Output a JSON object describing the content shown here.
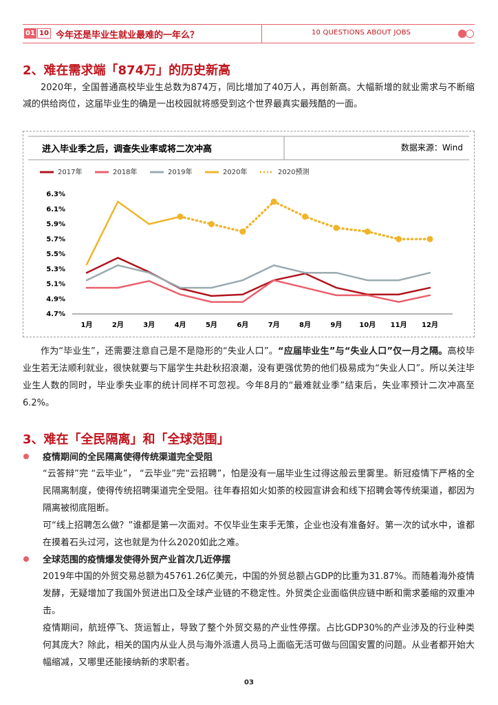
{
  "header": {
    "num": "01",
    "total": "10",
    "title": "今年还是毕业生就业最难的一年么？",
    "subtitle": "10 QUESTIONS ABOUT JOBS"
  },
  "section2": {
    "heading": "2、难在需求端「874万」的历史新高",
    "p1": "2020年，全国普通高校毕业生总数为874万，同比增加了40万人，再创新高。大幅新增的就业需求与不断缩减的供给岗位，这届毕业生的确是一出校园就将感受到这个世界最真实最残酷的一面。",
    "p2": {
      "before": "作为“毕业生”，还需要注意自己是不是隐形的“失业人口”。",
      "bold": "“应届毕业生”与“失业人口”仅一月之隔。",
      "after": "高校毕业生若无法顺利就业，很快就要与下届学生共赴秋招浪潮，没有更强优势的他们极易成为“失业人口”。所以关注毕业生人数的同时，毕业季失业率的统计同样不可忽视。今年8月的“最难就业季”结束后，失业率预计二次冲高至6.2%。"
    }
  },
  "chart_data": {
    "type": "line",
    "title": "进入毕业季之后，调查失业率或将二次冲高",
    "source": "数据来源：Wind",
    "categories": [
      "1月",
      "2月",
      "3月",
      "4月",
      "5月",
      "6月",
      "7月",
      "8月",
      "9月",
      "10月",
      "11月",
      "12月"
    ],
    "series": [
      {
        "name": "2017年",
        "color": "#b0141d",
        "values": [
          5.25,
          5.45,
          5.26,
          5.04,
          4.94,
          4.96,
          5.15,
          5.24,
          5.05,
          4.96,
          4.96,
          5.05
        ]
      },
      {
        "name": "2018年",
        "color": "#e8606a",
        "values": [
          5.05,
          5.05,
          5.14,
          4.96,
          4.86,
          4.86,
          5.15,
          5.05,
          4.95,
          4.95,
          4.86,
          4.95
        ]
      },
      {
        "name": "2019年",
        "color": "#9aaab0",
        "values": [
          5.15,
          5.35,
          5.25,
          5.05,
          5.05,
          5.15,
          5.35,
          5.25,
          5.25,
          5.15,
          5.15,
          5.25
        ]
      },
      {
        "name": "2020年",
        "color": "#f0b429",
        "values": [
          5.36,
          6.2,
          5.9,
          6.0,
          null,
          null,
          null,
          null,
          null,
          null,
          null,
          null
        ]
      },
      {
        "name": "2020预测",
        "color": "#f0b429",
        "line_style": "dotted",
        "markers": true,
        "values": [
          null,
          null,
          null,
          6.0,
          5.9,
          5.8,
          6.2,
          6.0,
          5.85,
          5.8,
          5.7,
          5.7
        ]
      }
    ],
    "ylim": [
      4.7,
      6.3
    ],
    "yticks": [
      {
        "value": 4.7,
        "label": "4.7%"
      },
      {
        "value": 4.9,
        "label": "4.9%"
      },
      {
        "value": 5.1,
        "label": "5.1%"
      },
      {
        "value": 5.3,
        "label": "5.3%"
      },
      {
        "value": 5.5,
        "label": "5.5%"
      },
      {
        "value": 5.7,
        "label": "5.7%"
      },
      {
        "value": 5.9,
        "label": "5.9%"
      },
      {
        "value": 6.1,
        "label": "6.1%"
      },
      {
        "value": 6.3,
        "label": "6.3%"
      }
    ],
    "grid": false,
    "legend": "top"
  },
  "section3": {
    "heading": "3、难在「全民隔离」和「全球范围」",
    "bullet1": {
      "heading": "疫情期间的全民隔离使得传统渠道完全受阻",
      "p1": "“云答辩”完 “云毕业”， “云毕业”完“云招聘”，怕是没有一届毕业生过得这般云里雾里。新冠疫情下严格的全民隔离制度，使得传统招聘渠道完全受阻。往年春招如火如荼的校园宣讲会和线下招聘会等传统渠道，都因为隔离被彻底阻断。",
      "p2": "可“线上招聘怎么做？”谁都是第一次面对。不仅毕业生束手无策，企业也没有准备好。第一次的试水中，谁都在摸着石头过河，这也就是为什么2020如此之难。"
    },
    "bullet2": {
      "heading": "全球范围的疫情爆发使得外贸产业首次几近停摆",
      "p1": "2019年中国的外贸交易总额为45761.26亿美元，中国的外贸总额占GDP的比重为31.87%。而随着海外疫情发酵，无疑增加了我国外贸进出口及全球产业链的不稳定性。外贸类企业面临供应链中断和需求萎缩的双重冲击。",
      "p2": "疫情期间，航班停飞、货运暂止，导致了整个外贸交易的产业性停摆。占比GDP30%的产业涉及的行业种类何其庞大？除此，相关的国内从业人员与海外派遣人员马上面临无活可做与回国安置的问题。从业者都开始大幅缩减，又哪里还能接纳新的求职者。"
    }
  },
  "footer": {
    "page": "03"
  }
}
